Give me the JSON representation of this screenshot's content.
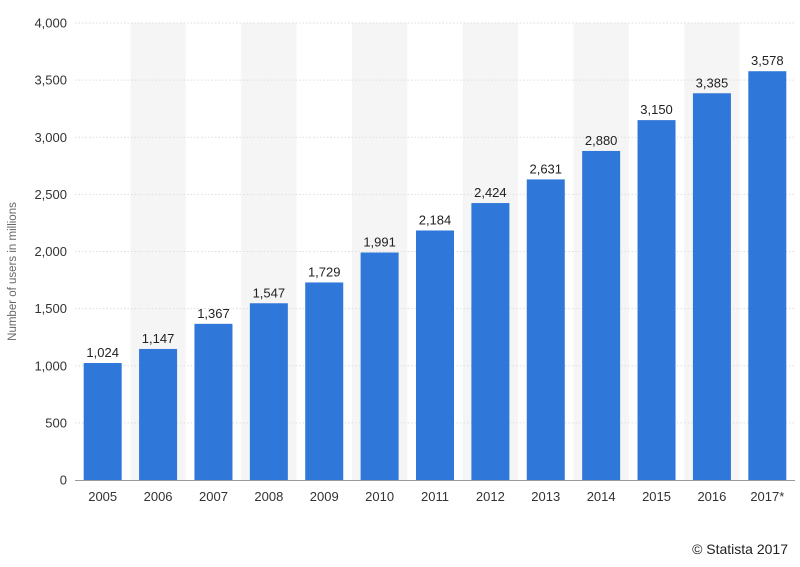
{
  "chart_data": {
    "type": "bar",
    "categories": [
      "2005",
      "2006",
      "2007",
      "2008",
      "2009",
      "2010",
      "2011",
      "2012",
      "2013",
      "2014",
      "2015",
      "2016",
      "2017*"
    ],
    "values": [
      1024,
      1147,
      1367,
      1547,
      1729,
      1991,
      2184,
      2424,
      2631,
      2880,
      3150,
      3385,
      3578
    ],
    "value_labels": [
      "1,024",
      "1,147",
      "1,367",
      "1,547",
      "1,729",
      "1,991",
      "2,184",
      "2,424",
      "2,631",
      "2,880",
      "3,150",
      "3,385",
      "3,578"
    ],
    "title": "",
    "xlabel": "",
    "ylabel": "Number of users in millions",
    "ylim": [
      0,
      4000
    ],
    "yticks": [
      0,
      500,
      1000,
      1500,
      2000,
      2500,
      3000,
      3500,
      4000
    ],
    "ytick_labels": [
      "0",
      "500",
      "1,000",
      "1,500",
      "2,000",
      "2,500",
      "3,000",
      "3,500",
      "4,000"
    ],
    "grid": true,
    "legend": "none",
    "colors": {
      "bar": "#2f77d9",
      "alt_band": "#f5f5f5",
      "grid": "#dedede",
      "axis": "#9a9a9a"
    }
  },
  "footer": {
    "credit": "© Statista 2017"
  }
}
